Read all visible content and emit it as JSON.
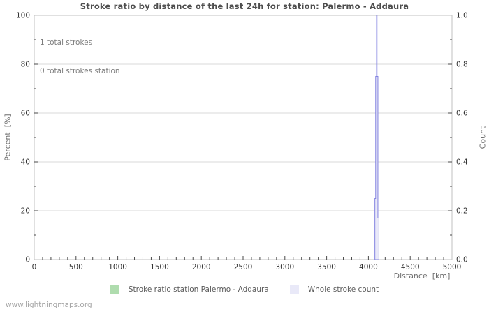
{
  "page": {
    "watermark": "www.lightningmaps.org",
    "background": "#ffffff"
  },
  "chart_data": {
    "type": "bar",
    "title": "Stroke ratio by distance of the last 24h for station: Palermo - Addaura",
    "xlabel": "Distance  [km]",
    "ylabel": "Percent  [%]",
    "y2label": "Count",
    "grid": true,
    "legend_position": "bottom-center",
    "annotations": [
      "1 total strokes",
      "0 total strokes station"
    ],
    "axes": {
      "x": {
        "min": 0,
        "max": 5000,
        "major_step": 500,
        "minor_step": 100,
        "decimals": 0
      },
      "y_left": {
        "min": 0,
        "max": 100,
        "major_step": 20,
        "minor_step": 10,
        "decimals": 0
      },
      "y_right": {
        "min": 0,
        "max": 1,
        "major_step": 0.2,
        "minor_step": 0.1,
        "decimals": 1
      }
    },
    "series": [
      {
        "name": "Stroke ratio station Palermo - Addaura",
        "axis": "left",
        "fill": "#afdcae",
        "line": "#afdcae",
        "points": []
      },
      {
        "name": "Whole stroke count",
        "axis": "right",
        "fill": "#e9e9f8",
        "line": "#8282e0",
        "points": [
          {
            "x": 4100,
            "y": 1.0
          }
        ]
      }
    ],
    "colors": {
      "title_text": "#4d4d4d",
      "tick_text": "#333333",
      "grid_line": "#d9d9d9",
      "plot_border": "#c2c2c2",
      "tick_mark": "#4a4a4a"
    }
  }
}
